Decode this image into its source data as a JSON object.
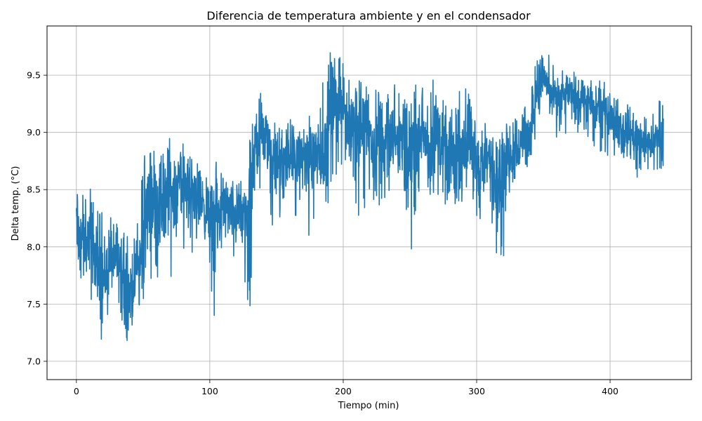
{
  "chart_data": {
    "type": "line",
    "title": "Diferencia de temperatura ambiente y en el condensador",
    "xlabel": "Tiempo (min)",
    "ylabel": "Delta temp. (°C)",
    "xlim": [
      -22,
      461
    ],
    "ylim": [
      6.84,
      9.93
    ],
    "xticks": [
      0,
      100,
      200,
      300,
      400
    ],
    "xtick_labels": [
      "0",
      "100",
      "200",
      "300",
      "400"
    ],
    "yticks": [
      7.0,
      7.5,
      8.0,
      8.5,
      9.0,
      9.5
    ],
    "ytick_labels": [
      "7.0",
      "7.5",
      "8.0",
      "8.5",
      "9.0",
      "9.5"
    ],
    "grid": true,
    "series": [
      {
        "color": "#1f77b4",
        "x": [
          0,
          5,
          10,
          15,
          20,
          25,
          30,
          35,
          40,
          45,
          50,
          55,
          60,
          65,
          70,
          75,
          80,
          85,
          90,
          95,
          100,
          105,
          110,
          115,
          120,
          125,
          130,
          135,
          140,
          145,
          150,
          155,
          160,
          165,
          170,
          175,
          180,
          185,
          190,
          195,
          200,
          205,
          210,
          215,
          220,
          225,
          230,
          235,
          240,
          245,
          250,
          255,
          260,
          265,
          270,
          275,
          280,
          285,
          290,
          295,
          300,
          305,
          310,
          315,
          320,
          325,
          330,
          335,
          340,
          345,
          350,
          355,
          360,
          365,
          370,
          375,
          380,
          385,
          390,
          395,
          400,
          405,
          410,
          415,
          420,
          425,
          430,
          435,
          440
        ],
        "y": [
          8.2,
          8.0,
          8.1,
          7.9,
          7.7,
          7.9,
          7.85,
          7.8,
          7.6,
          7.8,
          7.95,
          8.5,
          8.4,
          8.3,
          8.5,
          8.55,
          8.5,
          8.55,
          8.4,
          8.4,
          8.2,
          8.2,
          8.35,
          8.3,
          8.3,
          8.25,
          8.4,
          8.95,
          8.95,
          8.9,
          8.7,
          8.7,
          8.8,
          8.75,
          8.8,
          8.7,
          8.85,
          8.8,
          9.2,
          9.3,
          9.2,
          9.1,
          9.05,
          9.1,
          9.0,
          8.85,
          8.9,
          9.0,
          8.95,
          9.05,
          8.8,
          8.95,
          9.0,
          8.85,
          9.1,
          8.8,
          8.75,
          8.8,
          8.9,
          8.9,
          8.75,
          8.7,
          8.8,
          8.5,
          8.75,
          8.8,
          8.85,
          8.95,
          8.95,
          9.4,
          9.5,
          9.35,
          9.3,
          9.3,
          9.35,
          9.3,
          9.3,
          9.2,
          9.2,
          9.25,
          9.1,
          9.1,
          9.05,
          9.0,
          8.95,
          8.9,
          8.9,
          8.95,
          8.9
        ],
        "range_low": [
          7.38,
          7.75,
          7.3,
          7.55,
          6.98,
          7.5,
          7.4,
          7.3,
          7.08,
          7.3,
          7.5,
          7.45,
          7.6,
          7.5,
          7.7,
          7.9,
          7.85,
          7.95,
          7.9,
          7.9,
          7.5,
          7.32,
          7.7,
          7.75,
          7.7,
          7.62,
          7.35,
          8.4,
          8.4,
          8.3,
          8.0,
          8.0,
          8.3,
          8.2,
          8.35,
          7.8,
          8.4,
          8.45,
          8.3,
          8.6,
          8.7,
          8.4,
          8.15,
          8.3,
          8.4,
          8.25,
          8.4,
          8.5,
          8.5,
          8.6,
          7.8,
          8.4,
          8.5,
          8.4,
          8.5,
          8.0,
          8.05,
          8.4,
          8.3,
          8.3,
          8.0,
          8.2,
          8.35,
          7.82,
          7.85,
          8.45,
          8.5,
          8.6,
          8.65,
          9.05,
          9.15,
          9.1,
          8.95,
          8.95,
          9.05,
          9.0,
          9.0,
          8.75,
          8.75,
          8.85,
          8.7,
          8.8,
          8.75,
          8.6,
          8.6,
          8.6,
          8.6,
          8.65,
          8.7
        ],
        "range_high": [
          8.45,
          8.5,
          8.55,
          8.35,
          8.3,
          8.4,
          8.3,
          8.15,
          8.25,
          8.1,
          8.85,
          8.8,
          9.1,
          8.85,
          8.95,
          8.9,
          8.9,
          8.85,
          8.75,
          8.7,
          8.55,
          8.75,
          8.6,
          8.55,
          8.6,
          8.6,
          8.95,
          9.45,
          9.4,
          9.1,
          9.1,
          9.05,
          9.2,
          9.0,
          9.05,
          9.15,
          9.0,
          9.5,
          9.75,
          9.65,
          9.7,
          9.55,
          9.45,
          9.45,
          9.4,
          9.4,
          9.5,
          9.55,
          9.45,
          9.5,
          9.35,
          9.65,
          9.35,
          9.45,
          9.55,
          9.3,
          9.2,
          9.35,
          9.4,
          9.35,
          9.3,
          9.25,
          9.3,
          8.9,
          9.05,
          9.1,
          9.15,
          9.3,
          9.3,
          9.75,
          9.8,
          9.7,
          9.65,
          9.55,
          9.5,
          9.55,
          9.45,
          9.5,
          9.45,
          9.45,
          9.35,
          9.35,
          9.35,
          9.35,
          9.25,
          9.2,
          9.2,
          9.25,
          9.35
        ]
      }
    ]
  }
}
